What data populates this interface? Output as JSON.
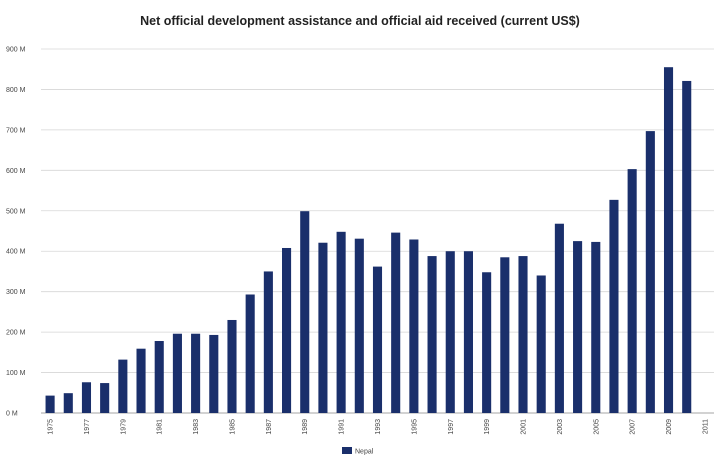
{
  "chart_data": {
    "type": "bar",
    "title": "Net official development assistance and official aid received (current US$)",
    "xlabel": "",
    "ylabel": "",
    "ylim": [
      0,
      900
    ],
    "y_ticks": [
      0,
      100,
      200,
      300,
      400,
      500,
      600,
      700,
      800,
      900
    ],
    "y_tick_labels": [
      "0 M",
      "100 M",
      "200 M",
      "300 M",
      "400 M",
      "500 M",
      "600 M",
      "700 M",
      "800 M",
      "900 M"
    ],
    "x_tick_labels": [
      "1975",
      "1977",
      "1979",
      "1981",
      "1983",
      "1985",
      "1987",
      "1989",
      "1991",
      "1993",
      "1995",
      "1997",
      "1999",
      "2001",
      "2003",
      "2005",
      "2007",
      "2009",
      "2011"
    ],
    "categories": [
      "1975",
      "1976",
      "1977",
      "1978",
      "1979",
      "1980",
      "1981",
      "1982",
      "1983",
      "1984",
      "1985",
      "1986",
      "1987",
      "1988",
      "1989",
      "1990",
      "1991",
      "1992",
      "1993",
      "1994",
      "1995",
      "1996",
      "1997",
      "1998",
      "1999",
      "2000",
      "2001",
      "2002",
      "2003",
      "2004",
      "2005",
      "2006",
      "2007",
      "2008",
      "2009",
      "2010",
      "2011"
    ],
    "series": [
      {
        "name": "Nepal",
        "color": "#1a2f6b",
        "values": [
          43,
          49,
          76,
          74,
          132,
          159,
          178,
          196,
          196,
          193,
          230,
          293,
          350,
          408,
          499,
          421,
          448,
          431,
          362,
          446,
          429,
          388,
          400,
          400,
          348,
          385,
          388,
          340,
          468,
          425,
          423,
          527,
          603,
          697,
          855,
          821,
          null
        ]
      }
    ],
    "grid": true,
    "legend_position": "bottom"
  }
}
